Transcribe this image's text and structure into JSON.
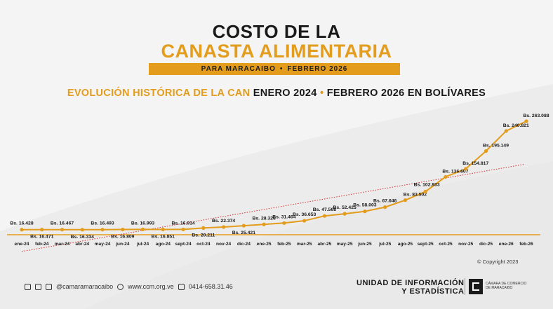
{
  "header": {
    "line1": "COSTO DE LA",
    "line2": "CANASTA ALIMENTARIA",
    "band_left": "PARA MARACAIBO",
    "band_dot": "•",
    "band_right": "FEBRERO 2026"
  },
  "subtitle": {
    "part1": "EVOLUCIÓN HISTÓRICA DE LA CAN",
    "part2": "ENERO 2024",
    "dot": "•",
    "part3": "FEBRERO 2026 EN BOLÍVARES"
  },
  "chart_data": {
    "type": "line",
    "categories": [
      "ene-24",
      "feb-24",
      "mar-24",
      "abr-24",
      "may-24",
      "jun-24",
      "jul-24",
      "ago-24",
      "sept-24",
      "oct-24",
      "nov-24",
      "dic-24",
      "ene-25",
      "feb-25",
      "mar-25",
      "abr-25",
      "may-25",
      "jun-25",
      "jul-25",
      "ago-25",
      "sept-25",
      "oct-25",
      "nov-25",
      "dic-25",
      "ene-26",
      "feb-26"
    ],
    "values": [
      16.428,
      16.471,
      16.467,
      16.334,
      16.493,
      16.809,
      16.993,
      16.851,
      16.914,
      20.211,
      22.374,
      25.421,
      28.326,
      31.464,
      36.653,
      47.568,
      52.425,
      58.003,
      67.646,
      83.502,
      102.933,
      136.607,
      154.817,
      195.149,
      240.821,
      263.088
    ],
    "labels": [
      "Bs. 16.428",
      "Bs. 16.471",
      "Bs. 16.467",
      "Bs. 16.334",
      "Bs. 16.493",
      "Bs. 16.809",
      "Bs. 16.993",
      "Bs. 16.851",
      "Bs. 16.914",
      "Bs. 20.211",
      "Bs. 22.374",
      "Bs. 25.421",
      "Bs. 28.326",
      "Bs. 31.464",
      "Bs. 36.653",
      "Bs. 47.568",
      "Bs. 52.425",
      "Bs. 58.003",
      "Bs. 67.646",
      "Bs. 83.502",
      "Bs. 102.933",
      "Bs. 136.607",
      "Bs. 154.817",
      "Bs. 195.149",
      "Bs. 240.821",
      "Bs. 263.088"
    ],
    "trendline": true,
    "legend": "none",
    "grid": false,
    "colors": {
      "line": "#e39c1b",
      "marker": "#e39c1b",
      "trend": "#d32f2f",
      "axis": "#e39c1b"
    }
  },
  "copyright": "© Copyright 2023",
  "footer": {
    "social": "@camaramaracaibo",
    "web": "www.ccm.org.ve",
    "phone": "0414-658.31.46",
    "unit_line1": "UNIDAD DE INFORMACIÓN",
    "unit_line2": "Y ESTADÍSTICA",
    "logo_line1": "CÁMARA DE COMERCIO",
    "logo_line2": "DE MARACAIBO"
  }
}
